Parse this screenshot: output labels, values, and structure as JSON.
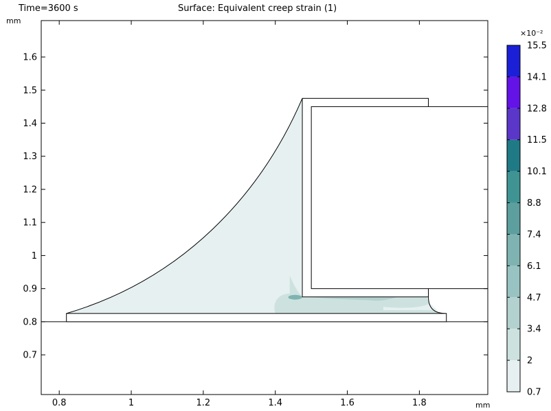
{
  "header": {
    "time_label": "Time=3600 s",
    "title": "Surface: Equivalent creep strain (1)"
  },
  "chart_data": {
    "type": "heatmap",
    "title": "Surface: Equivalent creep strain (1)",
    "subtitle": "Time=3600 s",
    "x_unit": "mm",
    "y_unit": "mm",
    "xlim": [
      0.75,
      1.99
    ],
    "ylim": [
      0.58,
      1.71
    ],
    "x_ticks": [
      0.8,
      1,
      1.2,
      1.4,
      1.6,
      1.8
    ],
    "x_tick_labels": [
      "0.8",
      "1",
      "1.2",
      "1.4",
      "1.6",
      "1.8"
    ],
    "y_ticks": [
      0.7,
      0.8,
      0.9,
      1,
      1.1,
      1.2,
      1.3,
      1.4,
      1.5,
      1.6
    ],
    "y_tick_labels": [
      "0.7",
      "0.8",
      "0.9",
      "1",
      "1.1",
      "1.2",
      "1.3",
      "1.4",
      "1.5",
      "1.6"
    ],
    "grid": false,
    "colorbar": {
      "multiplier_label": "×10⁻²",
      "tick_labels": [
        "0.7",
        "2",
        "3.4",
        "4.7",
        "6.1",
        "7.4",
        "8.8",
        "10.1",
        "11.5",
        "12.8",
        "14.1",
        "15.5"
      ],
      "bands": [
        {
          "from": 0.7,
          "to": 2.0,
          "color": "#e6f0f0"
        },
        {
          "from": 2.0,
          "to": 3.4,
          "color": "#cde2df"
        },
        {
          "from": 3.4,
          "to": 4.7,
          "color": "#b3d1cf"
        },
        {
          "from": 4.7,
          "to": 6.1,
          "color": "#98c3c2"
        },
        {
          "from": 6.1,
          "to": 7.4,
          "color": "#7fb3b2"
        },
        {
          "from": 7.4,
          "to": 8.8,
          "color": "#5c9f9e"
        },
        {
          "from": 8.8,
          "to": 10.1,
          "color": "#3f9493"
        },
        {
          "from": 10.1,
          "to": 11.5,
          "color": "#1f7a86"
        },
        {
          "from": 11.5,
          "to": 12.8,
          "color": "#5a37c9"
        },
        {
          "from": 12.8,
          "to": 14.1,
          "color": "#6313e6"
        },
        {
          "from": 14.1,
          "to": 15.5,
          "color": "#1b1fd6"
        },
        {
          "from": 15.5,
          "to": 15.5,
          "color": "#0a0ea0"
        }
      ]
    },
    "geometry": {
      "board": {
        "x1": 0.75,
        "x2": 1.99,
        "y_top": 0.8
      },
      "pad": {
        "x1": 0.82,
        "x2": 1.875,
        "y1": 0.8,
        "y2": 0.825
      },
      "fillet": {
        "x_toe": 0.82,
        "y_toe": 0.825,
        "x_top": 1.475,
        "y_top": 1.475
      },
      "leadframe": {
        "x1": 1.475,
        "x2": 1.825,
        "y1": 0.875,
        "y2": 1.475
      },
      "component": {
        "x1": 1.5,
        "x2": 1.99,
        "y1": 0.9,
        "y2": 1.45
      }
    }
  }
}
